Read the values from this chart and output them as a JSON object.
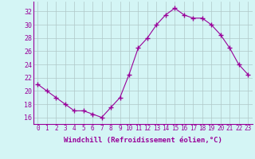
{
  "x": [
    0,
    1,
    2,
    3,
    4,
    5,
    6,
    7,
    8,
    9,
    10,
    11,
    12,
    13,
    14,
    15,
    16,
    17,
    18,
    19,
    20,
    21,
    22,
    23
  ],
  "y": [
    21.0,
    20.0,
    19.0,
    18.0,
    17.0,
    17.0,
    16.5,
    16.0,
    17.5,
    19.0,
    22.5,
    26.5,
    28.0,
    30.0,
    31.5,
    32.5,
    31.5,
    31.0,
    31.0,
    30.0,
    28.5,
    26.5,
    24.0,
    22.5
  ],
  "line_color": "#990099",
  "marker": "+",
  "marker_size": 4,
  "xlabel": "Windchill (Refroidissement éolien,°C)",
  "xlabel_fontsize": 6.5,
  "ylabel_ticks": [
    16,
    18,
    20,
    22,
    24,
    26,
    28,
    30,
    32
  ],
  "xtick_labels": [
    "0",
    "1",
    "2",
    "3",
    "4",
    "5",
    "6",
    "7",
    "8",
    "9",
    "10",
    "11",
    "12",
    "13",
    "14",
    "15",
    "16",
    "17",
    "18",
    "19",
    "20",
    "21",
    "22",
    "23"
  ],
  "xlim": [
    -0.5,
    23.5
  ],
  "ylim": [
    15.0,
    33.5
  ],
  "bg_color": "#d4f5f5",
  "grid_color": "#b0c8c8",
  "tick_color": "#990099",
  "label_color": "#990099",
  "tick_fontsize": 5.5,
  "ytick_fontsize": 6.0
}
